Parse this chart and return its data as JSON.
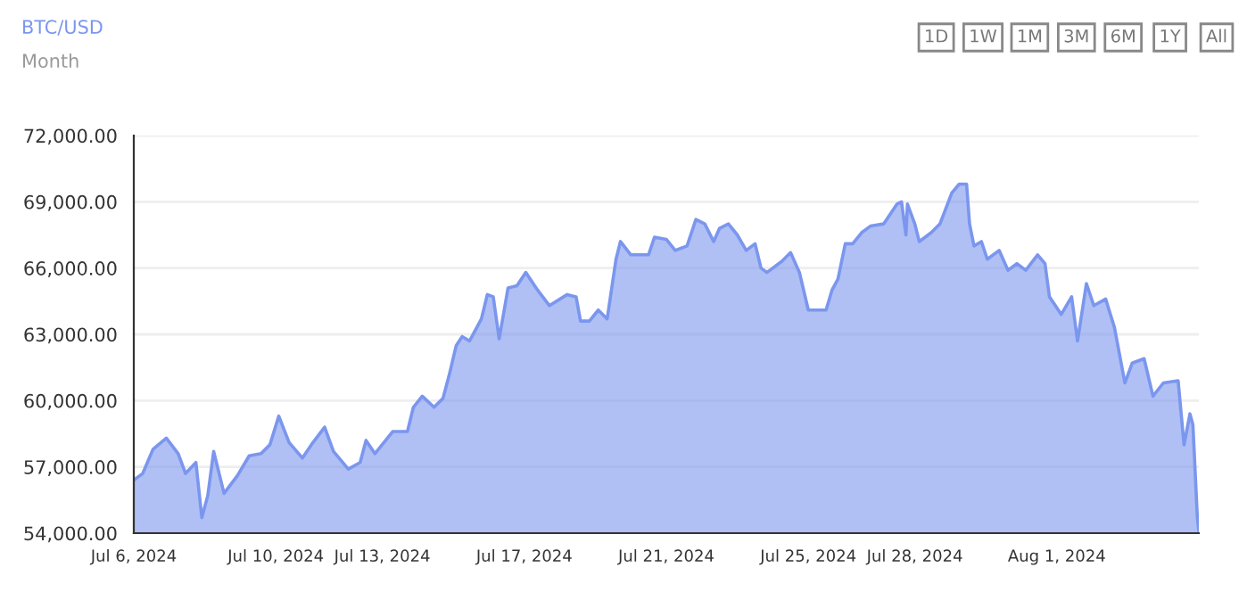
{
  "chart_data": {
    "type": "area",
    "title": "BTC/USD",
    "subtitle": "Month",
    "annotations": [
      "1D",
      "1W",
      "1M",
      "3M",
      "6M",
      "1Y",
      "All"
    ],
    "x": [
      "2024-07-06T00:00",
      "2024-07-06T06:00",
      "2024-07-06T13:00",
      "2024-07-06T22:00",
      "2024-07-07T06:00",
      "2024-07-07T11:00",
      "2024-07-07T18:00",
      "2024-07-07T22:00",
      "2024-07-08T02:00",
      "2024-07-08T06:00",
      "2024-07-08T13:00",
      "2024-07-08T22:00",
      "2024-07-09T06:00",
      "2024-07-09T14:00",
      "2024-07-09T20:00",
      "2024-07-10T02:00",
      "2024-07-10T09:00",
      "2024-07-10T18:00",
      "2024-07-11T00:00",
      "2024-07-11T09:00",
      "2024-07-11T15:00",
      "2024-07-12T01:00",
      "2024-07-12T09:00",
      "2024-07-12T13:00",
      "2024-07-12T19:00",
      "2024-07-13T07:00",
      "2024-07-13T17:00",
      "2024-07-13T21:00",
      "2024-07-14T03:00",
      "2024-07-14T11:00",
      "2024-07-14T17:00",
      "2024-07-14T21:00",
      "2024-07-15T02:00",
      "2024-07-15T06:00",
      "2024-07-15T11:00",
      "2024-07-15T19:00",
      "2024-07-15T23:00",
      "2024-07-16T03:00",
      "2024-07-16T07:00",
      "2024-07-16T13:00",
      "2024-07-16T19:00",
      "2024-07-17T01:00",
      "2024-07-17T09:00",
      "2024-07-17T17:00",
      "2024-07-18T05:00",
      "2024-07-18T11:00",
      "2024-07-18T14:00",
      "2024-07-18T20:00",
      "2024-07-19T02:00",
      "2024-07-19T08:00",
      "2024-07-19T14:00",
      "2024-07-19T17:00",
      "2024-07-20T00:00",
      "2024-07-20T12:00",
      "2024-07-20T16:00",
      "2024-07-21T00:00",
      "2024-07-21T06:00",
      "2024-07-21T14:00",
      "2024-07-21T20:00",
      "2024-07-22T02:00",
      "2024-07-22T08:00",
      "2024-07-22T12:00",
      "2024-07-22T18:00",
      "2024-07-23T00:00",
      "2024-07-23T06:00",
      "2024-07-23T12:00",
      "2024-07-23T16:00",
      "2024-07-23T20:00",
      "2024-07-24T06:00",
      "2024-07-24T12:00",
      "2024-07-24T18:00",
      "2024-07-25T00:00",
      "2024-07-25T12:00",
      "2024-07-25T16:00",
      "2024-07-25T20:00",
      "2024-07-26T01:00",
      "2024-07-26T06:00",
      "2024-07-26T12:00",
      "2024-07-26T18:00",
      "2024-07-27T03:00",
      "2024-07-27T12:00",
      "2024-07-27T15:00",
      "2024-07-27T18:00",
      "2024-07-27T19:00",
      "2024-07-28T00:00",
      "2024-07-28T03:00",
      "2024-07-28T11:00",
      "2024-07-28T17:00",
      "2024-07-29T01:00",
      "2024-07-29T06:00",
      "2024-07-29T11:00",
      "2024-07-29T13:00",
      "2024-07-29T16:00",
      "2024-07-29T21:00",
      "2024-07-30T01:00",
      "2024-07-30T09:00",
      "2024-07-30T15:00",
      "2024-07-30T21:00",
      "2024-07-31T03:00",
      "2024-07-31T11:00",
      "2024-07-31T16:00",
      "2024-07-31T19:00",
      "2024-08-01T03:00",
      "2024-08-01T10:00",
      "2024-08-01T14:00",
      "2024-08-01T20:00",
      "2024-08-02T01:00",
      "2024-08-02T09:00",
      "2024-08-02T15:00",
      "2024-08-02T22:00",
      "2024-08-03T03:00",
      "2024-08-03T11:00",
      "2024-08-03T17:00",
      "2024-08-04T00:00",
      "2024-08-04T10:00",
      "2024-08-04T14:00",
      "2024-08-04T18:00",
      "2024-08-04T20:00",
      "2024-08-04T23:00",
      "2024-08-05T00:00"
    ],
    "series": [
      {
        "color": "#7b96ee",
        "values": [
          56400,
          56700,
          57800,
          58300,
          57600,
          56700,
          57200,
          54700,
          55700,
          57700,
          55800,
          56600,
          57500,
          57600,
          58000,
          59300,
          58100,
          57400,
          58000,
          58800,
          57700,
          56900,
          57200,
          58200,
          57600,
          58600,
          58600,
          59700,
          60200,
          59700,
          60100,
          61100,
          62500,
          62900,
          62700,
          63700,
          64800,
          64700,
          62800,
          65100,
          65200,
          65800,
          65000,
          64300,
          64800,
          64700,
          63600,
          63600,
          64100,
          63700,
          66400,
          67200,
          66600,
          66600,
          67400,
          67300,
          66800,
          67000,
          68200,
          68000,
          67200,
          67800,
          68000,
          67500,
          66800,
          67100,
          66000,
          65800,
          66300,
          66700,
          65800,
          64100,
          64100,
          65000,
          65500,
          67100,
          67100,
          67600,
          67900,
          68000,
          68900,
          69000,
          67500,
          68900,
          68000,
          67200,
          67600,
          68000,
          69400,
          69800,
          69800,
          68000,
          67000,
          67200,
          66400,
          66800,
          65900,
          66200,
          65900,
          66600,
          66200,
          64700,
          63900,
          64700,
          62700,
          65300,
          64300,
          64600,
          63300,
          60800,
          61700,
          61900,
          60200,
          60800,
          60900,
          58000,
          59400,
          58900,
          54700,
          54100
        ]
      }
    ],
    "xlim": [
      "2024-07-06",
      "2024-08-05"
    ],
    "xticks": [
      {
        "value": "2024-07-06",
        "label": "Jul 6, 2024"
      },
      {
        "value": "2024-07-10",
        "label": "Jul 10, 2024"
      },
      {
        "value": "2024-07-13",
        "label": "Jul 13, 2024"
      },
      {
        "value": "2024-07-17",
        "label": "Jul 17, 2024"
      },
      {
        "value": "2024-07-21",
        "label": "Jul 21, 2024"
      },
      {
        "value": "2024-07-25",
        "label": "Jul 25, 2024"
      },
      {
        "value": "2024-07-28",
        "label": "Jul 28, 2024"
      },
      {
        "value": "2024-08-01",
        "label": "Aug 1, 2024"
      }
    ],
    "ylim": [
      54000,
      72000
    ],
    "yticks": [
      {
        "value": 54000,
        "label": "54,000.00"
      },
      {
        "value": 57000,
        "label": "57,000.00"
      },
      {
        "value": 60000,
        "label": "60,000.00"
      },
      {
        "value": 63000,
        "label": "63,000.00"
      },
      {
        "value": 66000,
        "label": "66,000.00"
      },
      {
        "value": 69000,
        "label": "69,000.00"
      },
      {
        "value": 72000,
        "label": "72,000.00"
      }
    ],
    "grid": "y",
    "legend": false,
    "marker": "none",
    "line_style": "solid"
  }
}
